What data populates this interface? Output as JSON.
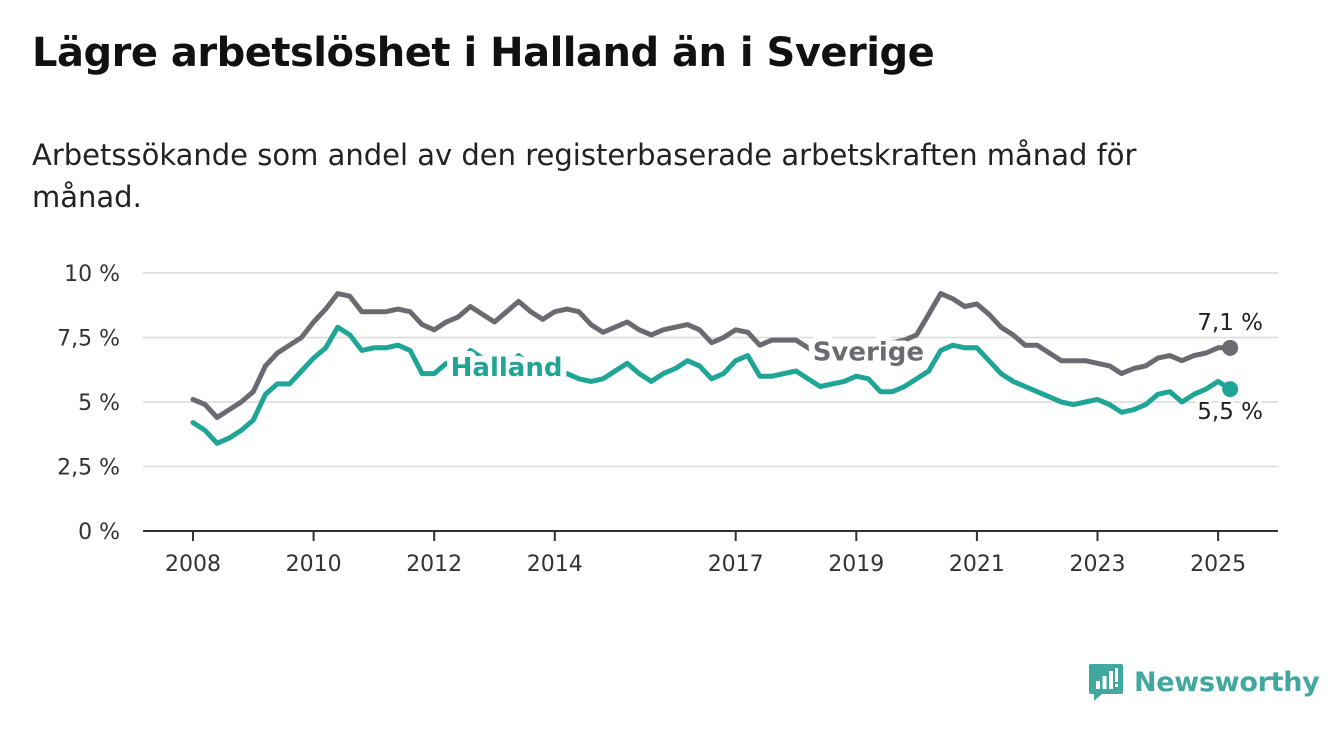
{
  "header": {
    "title": "Lägre arbetslöshet i Halland än i Sverige",
    "subtitle": "Arbetssökande som andel av den registerbaserade arbetskraften månad för månad."
  },
  "brand": {
    "name": "Newsworthy",
    "icon": "newsworthy-logo-icon",
    "color": "#41a8a0"
  },
  "chart_data": {
    "type": "line",
    "title": "Lägre arbetslöshet i Halland än i Sverige",
    "subtitle": "Arbetssökande som andel av den registerbaserade arbetskraften månad för månad.",
    "xlabel": "",
    "ylabel": "",
    "x_ticks": [
      "2008",
      "2010",
      "2012",
      "2014",
      "2017",
      "2019",
      "2021",
      "2023",
      "2025"
    ],
    "y_ticks": [
      {
        "value": 0,
        "label": "0 %"
      },
      {
        "value": 2.5,
        "label": "2,5 %"
      },
      {
        "value": 5,
        "label": "5 %"
      },
      {
        "value": 7.5,
        "label": "7,5 %"
      },
      {
        "value": 10,
        "label": "10 %"
      }
    ],
    "ylim": [
      0,
      10
    ],
    "xlim": [
      2007.2,
      2026.0
    ],
    "grid": true,
    "legend": "inline labels",
    "series": [
      {
        "name": "Sverige",
        "color": "#6b6a70",
        "label_at": 2019.2,
        "end_label": "7,1 %",
        "points": [
          [
            2008.0,
            5.1
          ],
          [
            2008.2,
            4.9
          ],
          [
            2008.4,
            4.4
          ],
          [
            2008.6,
            4.7
          ],
          [
            2008.8,
            5.0
          ],
          [
            2009.0,
            5.4
          ],
          [
            2009.2,
            6.4
          ],
          [
            2009.4,
            6.9
          ],
          [
            2009.6,
            7.2
          ],
          [
            2009.8,
            7.5
          ],
          [
            2010.0,
            8.1
          ],
          [
            2010.2,
            8.6
          ],
          [
            2010.4,
            9.2
          ],
          [
            2010.6,
            9.1
          ],
          [
            2010.8,
            8.5
          ],
          [
            2011.0,
            8.5
          ],
          [
            2011.2,
            8.5
          ],
          [
            2011.4,
            8.6
          ],
          [
            2011.6,
            8.5
          ],
          [
            2011.8,
            8.0
          ],
          [
            2012.0,
            7.8
          ],
          [
            2012.2,
            8.1
          ],
          [
            2012.4,
            8.3
          ],
          [
            2012.6,
            8.7
          ],
          [
            2012.8,
            8.4
          ],
          [
            2013.0,
            8.1
          ],
          [
            2013.2,
            8.5
          ],
          [
            2013.4,
            8.9
          ],
          [
            2013.6,
            8.5
          ],
          [
            2013.8,
            8.2
          ],
          [
            2014.0,
            8.5
          ],
          [
            2014.2,
            8.6
          ],
          [
            2014.4,
            8.5
          ],
          [
            2014.6,
            8.0
          ],
          [
            2014.8,
            7.7
          ],
          [
            2015.0,
            7.9
          ],
          [
            2015.2,
            8.1
          ],
          [
            2015.4,
            7.8
          ],
          [
            2015.6,
            7.6
          ],
          [
            2015.8,
            7.8
          ],
          [
            2016.0,
            7.9
          ],
          [
            2016.2,
            8.0
          ],
          [
            2016.4,
            7.8
          ],
          [
            2016.6,
            7.3
          ],
          [
            2016.8,
            7.5
          ],
          [
            2017.0,
            7.8
          ],
          [
            2017.2,
            7.7
          ],
          [
            2017.4,
            7.2
          ],
          [
            2017.6,
            7.4
          ],
          [
            2017.8,
            7.4
          ],
          [
            2018.0,
            7.4
          ],
          [
            2018.2,
            7.1
          ],
          [
            2018.4,
            6.8
          ],
          [
            2018.6,
            6.7
          ],
          [
            2018.8,
            6.8
          ],
          [
            2019.0,
            6.9
          ],
          [
            2019.2,
            7.0
          ],
          [
            2019.4,
            7.1
          ],
          [
            2019.6,
            7.3
          ],
          [
            2019.8,
            7.4
          ],
          [
            2020.0,
            7.6
          ],
          [
            2020.2,
            8.4
          ],
          [
            2020.4,
            9.2
          ],
          [
            2020.6,
            9.0
          ],
          [
            2020.8,
            8.7
          ],
          [
            2021.0,
            8.8
          ],
          [
            2021.2,
            8.4
          ],
          [
            2021.4,
            7.9
          ],
          [
            2021.6,
            7.6
          ],
          [
            2021.8,
            7.2
          ],
          [
            2022.0,
            7.2
          ],
          [
            2022.2,
            6.9
          ],
          [
            2022.4,
            6.6
          ],
          [
            2022.6,
            6.6
          ],
          [
            2022.8,
            6.6
          ],
          [
            2023.0,
            6.5
          ],
          [
            2023.2,
            6.4
          ],
          [
            2023.4,
            6.1
          ],
          [
            2023.6,
            6.3
          ],
          [
            2023.8,
            6.4
          ],
          [
            2024.0,
            6.7
          ],
          [
            2024.2,
            6.8
          ],
          [
            2024.4,
            6.6
          ],
          [
            2024.6,
            6.8
          ],
          [
            2024.8,
            6.9
          ],
          [
            2025.0,
            7.1
          ],
          [
            2025.2,
            7.1
          ]
        ]
      },
      {
        "name": "Halland",
        "color": "#1fa596",
        "label_at": 2013.2,
        "end_label": "5,5 %",
        "points": [
          [
            2008.0,
            4.2
          ],
          [
            2008.2,
            3.9
          ],
          [
            2008.4,
            3.4
          ],
          [
            2008.6,
            3.6
          ],
          [
            2008.8,
            3.9
          ],
          [
            2009.0,
            4.3
          ],
          [
            2009.2,
            5.3
          ],
          [
            2009.4,
            5.7
          ],
          [
            2009.6,
            5.7
          ],
          [
            2009.8,
            6.2
          ],
          [
            2010.0,
            6.7
          ],
          [
            2010.2,
            7.1
          ],
          [
            2010.4,
            7.9
          ],
          [
            2010.6,
            7.6
          ],
          [
            2010.8,
            7.0
          ],
          [
            2011.0,
            7.1
          ],
          [
            2011.2,
            7.1
          ],
          [
            2011.4,
            7.2
          ],
          [
            2011.6,
            7.0
          ],
          [
            2011.8,
            6.1
          ],
          [
            2012.0,
            6.1
          ],
          [
            2012.2,
            6.5
          ],
          [
            2012.4,
            6.5
          ],
          [
            2012.6,
            7.0
          ],
          [
            2012.8,
            6.7
          ],
          [
            2013.0,
            6.0
          ],
          [
            2013.2,
            6.4
          ],
          [
            2013.4,
            6.8
          ],
          [
            2013.6,
            6.4
          ],
          [
            2013.8,
            6.1
          ],
          [
            2014.0,
            6.2
          ],
          [
            2014.2,
            6.1
          ],
          [
            2014.4,
            5.9
          ],
          [
            2014.6,
            5.8
          ],
          [
            2014.8,
            5.9
          ],
          [
            2015.0,
            6.2
          ],
          [
            2015.2,
            6.5
          ],
          [
            2015.4,
            6.1
          ],
          [
            2015.6,
            5.8
          ],
          [
            2015.8,
            6.1
          ],
          [
            2016.0,
            6.3
          ],
          [
            2016.2,
            6.6
          ],
          [
            2016.4,
            6.4
          ],
          [
            2016.6,
            5.9
          ],
          [
            2016.8,
            6.1
          ],
          [
            2017.0,
            6.6
          ],
          [
            2017.2,
            6.8
          ],
          [
            2017.4,
            6.0
          ],
          [
            2017.6,
            6.0
          ],
          [
            2017.8,
            6.1
          ],
          [
            2018.0,
            6.2
          ],
          [
            2018.2,
            5.9
          ],
          [
            2018.4,
            5.6
          ],
          [
            2018.6,
            5.7
          ],
          [
            2018.8,
            5.8
          ],
          [
            2019.0,
            6.0
          ],
          [
            2019.2,
            5.9
          ],
          [
            2019.4,
            5.4
          ],
          [
            2019.6,
            5.4
          ],
          [
            2019.8,
            5.6
          ],
          [
            2020.0,
            5.9
          ],
          [
            2020.2,
            6.2
          ],
          [
            2020.4,
            7.0
          ],
          [
            2020.6,
            7.2
          ],
          [
            2020.8,
            7.1
          ],
          [
            2021.0,
            7.1
          ],
          [
            2021.2,
            6.6
          ],
          [
            2021.4,
            6.1
          ],
          [
            2021.6,
            5.8
          ],
          [
            2021.8,
            5.6
          ],
          [
            2022.0,
            5.4
          ],
          [
            2022.2,
            5.2
          ],
          [
            2022.4,
            5.0
          ],
          [
            2022.6,
            4.9
          ],
          [
            2022.8,
            5.0
          ],
          [
            2023.0,
            5.1
          ],
          [
            2023.2,
            4.9
          ],
          [
            2023.4,
            4.6
          ],
          [
            2023.6,
            4.7
          ],
          [
            2023.8,
            4.9
          ],
          [
            2024.0,
            5.3
          ],
          [
            2024.2,
            5.4
          ],
          [
            2024.4,
            5.0
          ],
          [
            2024.6,
            5.3
          ],
          [
            2024.8,
            5.5
          ],
          [
            2025.0,
            5.8
          ],
          [
            2025.2,
            5.5
          ]
        ]
      }
    ]
  }
}
